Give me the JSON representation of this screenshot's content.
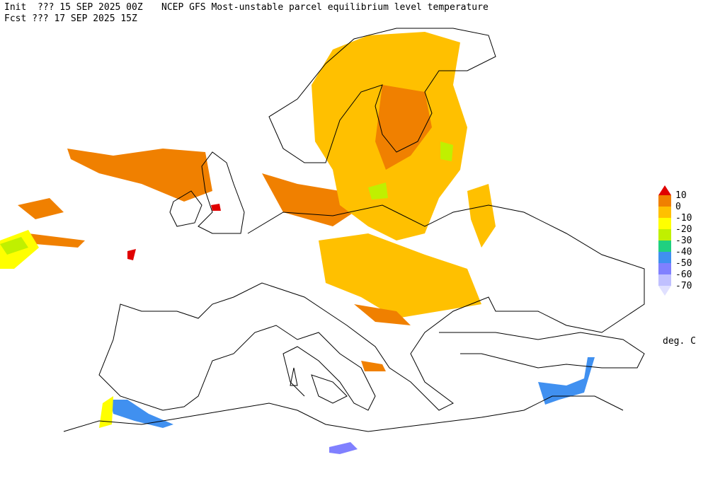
{
  "header": {
    "init": "Init  ??? 15 SEP 2025 00Z",
    "title": "NCEP GFS Most-unstable parcel equilibrium level temperature",
    "fcst": "Fcst ??? 17 SEP 2025 15Z"
  },
  "legend": {
    "ticks": [
      10,
      0,
      -10,
      -20,
      -30,
      -40,
      -50,
      -60,
      -70
    ],
    "colors": [
      "#e00000",
      "#f08000",
      "#ffc000",
      "#ffff00",
      "#c0f000",
      "#20d080",
      "#4090f0",
      "#8080ff",
      "#c0c0ff",
      "#e0e0ff"
    ],
    "unit": "deg. C"
  }
}
